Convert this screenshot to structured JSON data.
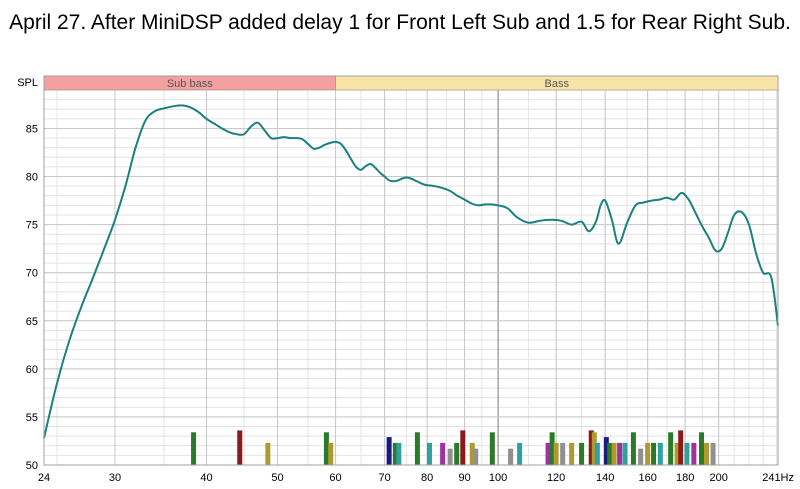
{
  "chart_data": {
    "type": "line",
    "title": "April 27. After MiniDSP added delay 1 for Front Left Sub and 1.5 for Rear Right Sub.",
    "ylabel": "SPL",
    "x_unit": "Hz",
    "x_scale": "log",
    "xlim": [
      24,
      241
    ],
    "ylim": [
      50,
      89
    ],
    "grid": true,
    "bands": [
      {
        "label": "Sub bass",
        "from": 24,
        "to": 60,
        "color": "#f4a0a0"
      },
      {
        "label": "Bass",
        "from": 60,
        "to": 241,
        "color": "#f8e4a8"
      }
    ],
    "x_ticks": [
      {
        "value": 24,
        "label": "24"
      },
      {
        "value": 30,
        "label": "30"
      },
      {
        "value": 40,
        "label": "40"
      },
      {
        "value": 50,
        "label": "50"
      },
      {
        "value": 60,
        "label": "60"
      },
      {
        "value": 70,
        "label": "70"
      },
      {
        "value": 80,
        "label": "80"
      },
      {
        "value": 90,
        "label": "90"
      },
      {
        "value": 100,
        "label": "100"
      },
      {
        "value": 120,
        "label": "120"
      },
      {
        "value": 140,
        "label": "140"
      },
      {
        "value": 160,
        "label": "160"
      },
      {
        "value": 180,
        "label": "180"
      },
      {
        "value": 200,
        "label": "200"
      },
      {
        "value": 241,
        "label": "241Hz"
      }
    ],
    "y_ticks": [
      50,
      55,
      60,
      65,
      70,
      75,
      80,
      85
    ],
    "series": [
      {
        "color": "#1a8080",
        "x": [
          24,
          25,
          26,
          27,
          28,
          29,
          30,
          31,
          32,
          33,
          34,
          35,
          36,
          37,
          38,
          39,
          40,
          41,
          42,
          43,
          44,
          45,
          46,
          47,
          48,
          49,
          50,
          51,
          52,
          53,
          54,
          55,
          56,
          57,
          58,
          59,
          60,
          61,
          62,
          63,
          64,
          65,
          66,
          67,
          68,
          69,
          70,
          71,
          72,
          73,
          74,
          75,
          76,
          77,
          78,
          79,
          80,
          82,
          84,
          86,
          88,
          90,
          92,
          94,
          96,
          98,
          100,
          103,
          106,
          110,
          114,
          118,
          122,
          126,
          130,
          133,
          136,
          138,
          140,
          143,
          146,
          150,
          154,
          158,
          162,
          166,
          170,
          174,
          178,
          182,
          186,
          190,
          194,
          198,
          202,
          206,
          210,
          215,
          220,
          225,
          230,
          236,
          241
        ],
        "y": [
          52.8,
          58.5,
          63.0,
          66.5,
          69.5,
          72.5,
          75.5,
          79.0,
          83.0,
          85.8,
          86.8,
          87.1,
          87.3,
          87.4,
          87.2,
          86.7,
          86.0,
          85.5,
          85.0,
          84.6,
          84.4,
          84.4,
          85.2,
          85.6,
          84.8,
          84.0,
          84.0,
          84.1,
          84.0,
          84.0,
          83.9,
          83.4,
          82.9,
          83.0,
          83.3,
          83.5,
          83.6,
          83.4,
          82.7,
          81.8,
          81.0,
          80.7,
          81.1,
          81.3,
          80.9,
          80.4,
          80.0,
          79.6,
          79.5,
          79.6,
          79.8,
          79.9,
          79.8,
          79.6,
          79.4,
          79.2,
          79.1,
          79.0,
          78.8,
          78.5,
          78.0,
          77.6,
          77.2,
          77.0,
          77.1,
          77.1,
          77.0,
          76.7,
          75.8,
          75.2,
          75.4,
          75.5,
          75.4,
          75.0,
          75.3,
          74.3,
          75.3,
          77.0,
          77.5,
          75.5,
          73.0,
          75.2,
          77.0,
          77.3,
          77.5,
          77.6,
          77.8,
          77.6,
          78.3,
          77.6,
          76.2,
          74.8,
          73.6,
          72.3,
          72.5,
          74.2,
          76.0,
          76.3,
          75.0,
          72.0,
          70.0,
          69.5,
          64.5
        ]
      }
    ],
    "markers": [
      {
        "x": 38.4,
        "height": 53.4,
        "color": "#2a7a2a"
      },
      {
        "x": 44.4,
        "height": 53.6,
        "color": "#8b1a1a"
      },
      {
        "x": 48.5,
        "height": 52.3,
        "color": "#b09a30"
      },
      {
        "x": 58.3,
        "height": 53.4,
        "color": "#2a7a2a"
      },
      {
        "x": 59.1,
        "height": 52.3,
        "color": "#b09a30"
      },
      {
        "x": 71.0,
        "height": 52.9,
        "color": "#1a1a80"
      },
      {
        "x": 72.4,
        "height": 52.3,
        "color": "#2a7a2a"
      },
      {
        "x": 73.2,
        "height": 52.3,
        "color": "#30a0a0"
      },
      {
        "x": 77.6,
        "height": 53.4,
        "color": "#2a7a2a"
      },
      {
        "x": 80.6,
        "height": 52.3,
        "color": "#30a0a0"
      },
      {
        "x": 84.0,
        "height": 52.3,
        "color": "#a030a0"
      },
      {
        "x": 86.0,
        "height": 51.7,
        "color": "#909090"
      },
      {
        "x": 87.8,
        "height": 52.3,
        "color": "#2a7a2a"
      },
      {
        "x": 89.5,
        "height": 53.6,
        "color": "#8b1a1a"
      },
      {
        "x": 92.2,
        "height": 52.3,
        "color": "#b09a30"
      },
      {
        "x": 93.2,
        "height": 51.7,
        "color": "#909090"
      },
      {
        "x": 98.2,
        "height": 53.4,
        "color": "#2a7a2a"
      },
      {
        "x": 104.0,
        "height": 51.7,
        "color": "#909090"
      },
      {
        "x": 107.0,
        "height": 52.3,
        "color": "#30a0a0"
      },
      {
        "x": 117.0,
        "height": 52.3,
        "color": "#a030a0"
      },
      {
        "x": 118.5,
        "height": 53.4,
        "color": "#2a7a2a"
      },
      {
        "x": 120.0,
        "height": 52.3,
        "color": "#b09a30"
      },
      {
        "x": 122.5,
        "height": 52.3,
        "color": "#909090"
      },
      {
        "x": 126.0,
        "height": 52.3,
        "color": "#b09a30"
      },
      {
        "x": 130.0,
        "height": 52.3,
        "color": "#2a7a2a"
      },
      {
        "x": 134.0,
        "height": 53.6,
        "color": "#8b1a1a"
      },
      {
        "x": 135.3,
        "height": 53.4,
        "color": "#b09a30"
      },
      {
        "x": 136.6,
        "height": 52.3,
        "color": "#30a0a0"
      },
      {
        "x": 140.5,
        "height": 52.9,
        "color": "#1a1a80"
      },
      {
        "x": 142.0,
        "height": 52.3,
        "color": "#2a7a2a"
      },
      {
        "x": 144.0,
        "height": 52.3,
        "color": "#b09a30"
      },
      {
        "x": 146.5,
        "height": 52.3,
        "color": "#a030a0"
      },
      {
        "x": 149.0,
        "height": 52.3,
        "color": "#30a0a0"
      },
      {
        "x": 153.0,
        "height": 53.4,
        "color": "#2a7a2a"
      },
      {
        "x": 156.5,
        "height": 51.7,
        "color": "#909090"
      },
      {
        "x": 160.0,
        "height": 52.3,
        "color": "#b09a30"
      },
      {
        "x": 163.0,
        "height": 52.3,
        "color": "#2a7a2a"
      },
      {
        "x": 166.5,
        "height": 52.3,
        "color": "#30a0a0"
      },
      {
        "x": 172.0,
        "height": 53.4,
        "color": "#2a7a2a"
      },
      {
        "x": 175.5,
        "height": 52.3,
        "color": "#b09a30"
      },
      {
        "x": 177.5,
        "height": 53.6,
        "color": "#8b1a1a"
      },
      {
        "x": 181.0,
        "height": 52.3,
        "color": "#30a0a0"
      },
      {
        "x": 185.0,
        "height": 52.3,
        "color": "#a030a0"
      },
      {
        "x": 189.5,
        "height": 53.4,
        "color": "#2a7a2a"
      },
      {
        "x": 192.5,
        "height": 52.3,
        "color": "#b09a30"
      },
      {
        "x": 196.5,
        "height": 52.3,
        "color": "#909090"
      }
    ]
  }
}
